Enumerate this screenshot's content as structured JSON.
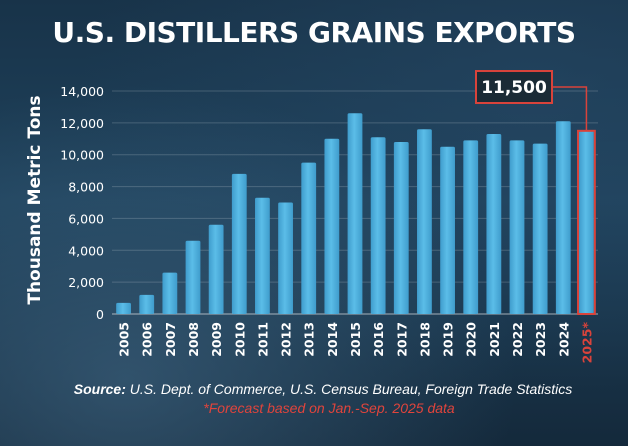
{
  "chart_data": {
    "type": "bar",
    "title": "U.S. DISTILLERS GRAINS EXPORTS",
    "xlabel": "",
    "ylabel": "Thousand Metric Tons",
    "ylim": [
      0,
      14000
    ],
    "yticks": [
      0,
      2000,
      4000,
      6000,
      8000,
      10000,
      12000,
      14000
    ],
    "ytick_labels": [
      "0",
      "2,000",
      "4,000",
      "6,000",
      "8,000",
      "10,000",
      "12,000",
      "14,000"
    ],
    "grid": true,
    "categories": [
      "2005",
      "2006",
      "2007",
      "2008",
      "2009",
      "2010",
      "2011",
      "2012",
      "2013",
      "2014",
      "2015",
      "2016",
      "2017",
      "2018",
      "2019",
      "2020",
      "2021",
      "2022",
      "2023",
      "2024",
      "2025*"
    ],
    "values": [
      700,
      1200,
      2600,
      4600,
      5600,
      8800,
      7300,
      7000,
      9500,
      11000,
      12600,
      11100,
      10800,
      11600,
      10500,
      10900,
      11300,
      10900,
      10700,
      12100,
      11500
    ],
    "highlight_index": 20,
    "annotation": "11,500",
    "colors": {
      "bar": "#5bbde8",
      "bar_dark": "#3f9ccc",
      "highlight_outline": "#d9433b",
      "label_bg": "#1b2b36"
    }
  },
  "source": {
    "label": "Source:",
    "text": "U.S. Dept. of Commerce, U.S. Census Bureau, Foreign Trade Statistics",
    "forecast_note": "*Forecast based on Jan.-Sep. 2025 data"
  }
}
